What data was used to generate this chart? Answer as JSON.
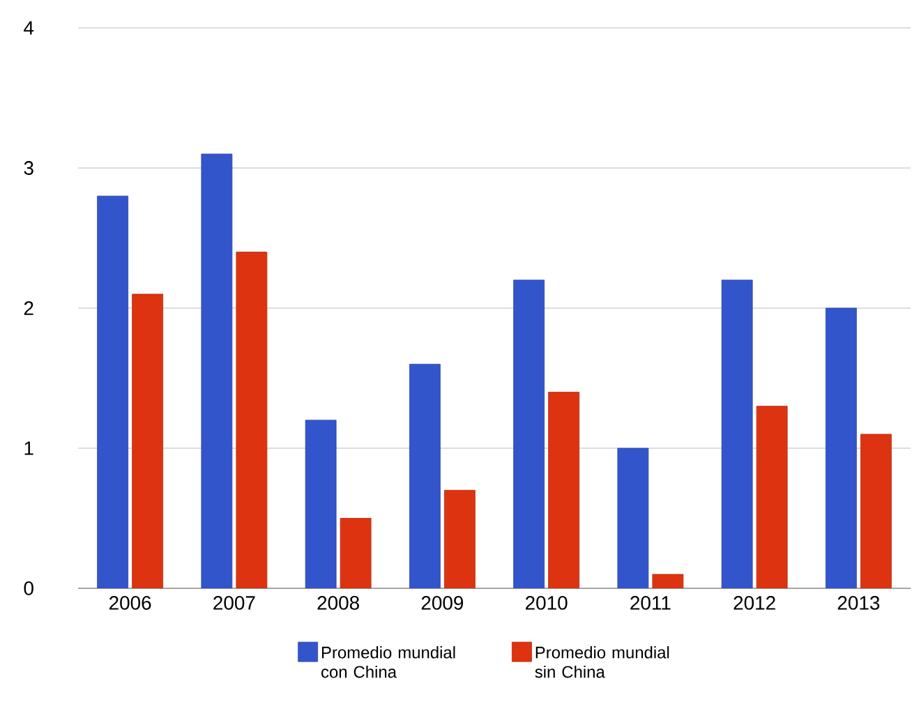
{
  "chart_data": {
    "type": "bar",
    "categories": [
      "2006",
      "2007",
      "2008",
      "2009",
      "2010",
      "2011",
      "2012",
      "2013"
    ],
    "series": [
      {
        "name": "Promedio mundial con China",
        "color": "#3355cc",
        "values": [
          2.8,
          3.1,
          1.2,
          1.6,
          2.2,
          1.0,
          2.2,
          2.0
        ]
      },
      {
        "name": "Promedio mundial sin China",
        "color": "#dd3311",
        "values": [
          2.1,
          2.4,
          0.5,
          0.7,
          1.4,
          0.1,
          1.3,
          1.1
        ]
      }
    ],
    "ylim": [
      0,
      4
    ],
    "yticks": [
      0,
      1,
      2,
      3,
      4
    ],
    "grid": "y",
    "legend": "bottom"
  }
}
